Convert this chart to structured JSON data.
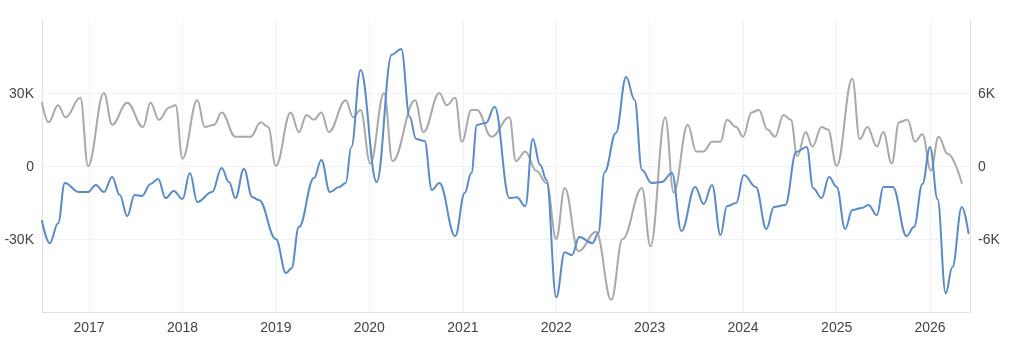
{
  "chart_data": {
    "type": "line",
    "marker": "none",
    "line_style": "solid",
    "grid": true,
    "xlim": [
      "2016-07-01",
      "2026-06-06"
    ],
    "xticks": [
      "2017",
      "2018",
      "2019",
      "2020",
      "2021",
      "2022",
      "2023",
      "2024",
      "2025",
      "2026"
    ],
    "ylim": [
      -60000,
      60000
    ],
    "yticks": [
      {
        "value": -30000,
        "label": "-30K"
      },
      0,
      {
        "value": 30000,
        "label": "30K"
      }
    ],
    "y2lim": [
      -12000,
      12000
    ],
    "y2ticks": [
      {
        "value": -6000,
        "label": "-6K"
      },
      0,
      {
        "value": 6000,
        "label": "6K"
      }
    ],
    "series": [
      {
        "color": "#a9a9a9",
        "axis": "y2",
        "x": [
          "2016-07-01",
          "2016-07-27",
          "2016-09-02",
          "2016-10-01",
          "2016-11-28",
          "2016-12-28",
          "2017-02-28",
          "2017-04-01",
          "2017-05-30",
          "2017-07-31",
          "2017-08-29",
          "2017-10-01",
          "2017-11-10",
          "2017-12-05",
          "2018-01-01",
          "2018-02-28",
          "2018-03-29",
          "2018-05-05",
          "2018-06-03",
          "2018-07-27",
          "2018-09-24",
          "2018-11-03",
          "2018-12-02",
          "2019-01-01",
          "2019-02-28",
          "2019-04-01",
          "2019-05-01",
          "2019-05-30",
          "2019-06-28",
          "2019-07-27",
          "2019-10-01",
          "2019-10-30",
          "2019-11-28",
          "2020-01-05",
          "2020-02-28",
          "2020-04-01",
          "2020-06-28",
          "2020-07-31",
          "2020-10-01",
          "2020-10-30",
          "2020-12-02",
          "2020-12-28",
          "2021-02-03",
          "2021-02-25",
          "2021-04-23",
          "2021-07-02",
          "2021-07-27",
          "2021-09-02",
          "2021-10-15",
          "2021-11-24",
          "2022-01-01",
          "2022-02-03",
          "2022-03-29",
          "2022-06-06",
          "2022-08-04",
          "2022-09-17",
          "2022-12-02",
          "2023-01-04",
          "2023-03-03",
          "2023-04-05",
          "2023-05-30",
          "2023-07-02",
          "2023-07-31",
          "2023-09-02",
          "2023-10-05",
          "2023-10-30",
          "2023-12-05",
          "2024-01-01",
          "2024-02-03",
          "2024-03-03",
          "2024-04-05",
          "2024-05-05",
          "2024-06-07",
          "2024-07-06",
          "2024-07-31",
          "2024-09-02",
          "2024-09-28",
          "2024-11-03",
          "2024-11-28",
          "2025-01-01",
          "2025-03-03",
          "2025-04-01",
          "2025-05-01",
          "2025-06-07",
          "2025-07-02",
          "2025-08-04",
          "2025-09-02",
          "2025-10-05",
          "2025-11-03",
          "2025-12-02",
          "2026-01-04",
          "2026-02-03",
          "2026-03-11",
          "2026-05-05"
        ],
        "values": [
          5200,
          3600,
          5000,
          4000,
          5600,
          0,
          6000,
          3400,
          5200,
          3200,
          5200,
          3800,
          4800,
          5000,
          600,
          5400,
          3200,
          3400,
          4400,
          2400,
          2400,
          3600,
          3200,
          0,
          4400,
          2800,
          4200,
          3800,
          4400,
          2800,
          5400,
          4000,
          4600,
          200,
          6000,
          400,
          5400,
          2800,
          6000,
          5000,
          5600,
          2000,
          4600,
          4600,
          2400,
          4000,
          400,
          1200,
          -400,
          -1400,
          -6000,
          -1800,
          -7000,
          -5400,
          -11000,
          -6000,
          -1800,
          -6600,
          4000,
          -2200,
          3400,
          1200,
          1200,
          2000,
          2000,
          3800,
          3200,
          2400,
          4400,
          4600,
          3000,
          2400,
          4200,
          3800,
          800,
          2800,
          1600,
          3200,
          3000,
          0,
          7200,
          2200,
          3200,
          1600,
          2800,
          200,
          3600,
          3800,
          2000,
          2600,
          -400,
          2400,
          1000,
          -1400
        ]
      },
      {
        "color": "#5b8bc6",
        "x": [
          "2016-07-01",
          "2016-07-31",
          "2016-09-02",
          "2016-09-28",
          "2016-11-22",
          "2016-12-28",
          "2017-01-27",
          "2017-02-28",
          "2017-04-01",
          "2017-05-01",
          "2017-05-30",
          "2017-06-28",
          "2017-07-27",
          "2017-08-29",
          "2017-09-28",
          "2017-10-27",
          "2017-11-28",
          "2018-01-01",
          "2018-01-30",
          "2018-02-28",
          "2018-04-27",
          "2018-06-03",
          "2018-07-02",
          "2018-07-27",
          "2018-08-29",
          "2018-10-01",
          "2018-10-27",
          "2019-01-01",
          "2019-02-10",
          "2019-03-03",
          "2019-04-01",
          "2019-05-30",
          "2019-06-28",
          "2019-07-31",
          "2019-09-06",
          "2019-10-01",
          "2019-10-23",
          "2019-11-28",
          "2020-01-30",
          "2020-03-29",
          "2020-05-05",
          "2020-06-07",
          "2020-07-02",
          "2020-08-04",
          "2020-09-02",
          "2020-10-01",
          "2020-12-02",
          "2021-01-08",
          "2021-02-03",
          "2021-02-25",
          "2021-04-01",
          "2021-05-05",
          "2021-07-02",
          "2021-07-31",
          "2021-09-02",
          "2021-10-01",
          "2021-10-30",
          "2021-11-24",
          "2022-01-01",
          "2022-02-03",
          "2022-03-03",
          "2022-04-01",
          "2022-05-23",
          "2022-06-14",
          "2022-07-09",
          "2022-08-22",
          "2022-10-01",
          "2022-11-03",
          "2022-12-02",
          "2023-01-08",
          "2023-02-17",
          "2023-03-29",
          "2023-05-05",
          "2023-06-28",
          "2023-07-31",
          "2023-09-02",
          "2023-10-05",
          "2023-10-30",
          "2023-12-05",
          "2024-01-04",
          "2024-02-20",
          "2024-04-01",
          "2024-05-01",
          "2024-06-14",
          "2024-07-27",
          "2024-09-06",
          "2024-10-01",
          "2024-11-03",
          "2024-12-02",
          "2025-01-01",
          "2025-02-03",
          "2025-03-03",
          "2025-04-09",
          "2025-05-05",
          "2025-06-07",
          "2025-07-02",
          "2025-08-08",
          "2025-10-01",
          "2025-10-30",
          "2025-12-02",
          "2026-01-01",
          "2026-01-30",
          "2026-03-03",
          "2026-03-29",
          "2026-05-05",
          "2026-05-31"
        ],
        "values": [
          -22600,
          -31700,
          -23500,
          -7000,
          -10700,
          -10700,
          -7800,
          -10700,
          -4500,
          -11900,
          -20600,
          -11900,
          -12300,
          -7400,
          -5300,
          -13200,
          -10300,
          -13600,
          -2900,
          -14800,
          -10700,
          -800,
          -6600,
          -13200,
          -1200,
          -12800,
          -14000,
          -30000,
          -44000,
          -42000,
          -25100,
          -4900,
          2500,
          -10700,
          -8600,
          -7000,
          7800,
          39500,
          -6600,
          45700,
          48100,
          20200,
          11100,
          10300,
          -9900,
          -7000,
          -28800,
          -11100,
          -2900,
          16900,
          17700,
          24300,
          -13200,
          -12800,
          -16500,
          11100,
          400,
          -5800,
          -53900,
          -35400,
          -36600,
          -29200,
          -31700,
          -27600,
          -2500,
          13600,
          36600,
          27200,
          -1600,
          -7000,
          -6600,
          -2900,
          -26700,
          -8600,
          -15600,
          -7800,
          -28400,
          -16500,
          -15200,
          -3700,
          -8600,
          -25900,
          -16900,
          -16000,
          5800,
          7800,
          -9100,
          -13200,
          -4500,
          -8600,
          -25900,
          -18100,
          -17300,
          -16000,
          -20200,
          -8600,
          -8600,
          -28800,
          -25100,
          -7400,
          7800,
          -13600,
          -52300,
          -41600,
          -16900,
          -27600
        ]
      }
    ]
  }
}
